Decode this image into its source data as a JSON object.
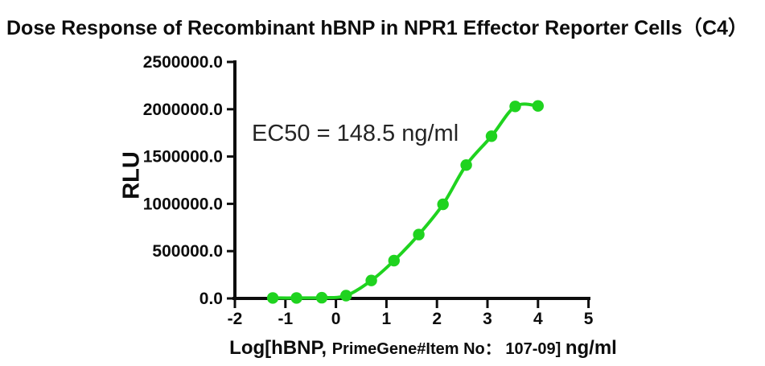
{
  "page": {
    "background": "#ffffff"
  },
  "chart_data": {
    "type": "line",
    "title": "Dose Response of Recombinant hBNP in NPR1 Effector Reporter Cells（C4）",
    "ylabel": "RLU",
    "xlabel_parts": [
      "Log[hBNP, ",
      "PrimeGene#Item No： 107-09] ",
      "ng/ml"
    ],
    "xlabel_full": "Log[hBNP, PrimeGene#Item No： 107-09] ng/ml",
    "annotation": "EC50 = 148.5 ng/ml",
    "ec50_ng_ml": 148.5,
    "xlim": [
      -2,
      5
    ],
    "ylim": [
      0,
      2500000
    ],
    "x_ticks": [
      -2,
      -1,
      0,
      1,
      2,
      3,
      4,
      5
    ],
    "x_tick_labels": [
      "-2",
      "-1",
      "0",
      "1",
      "2",
      "3",
      "4",
      "5"
    ],
    "y_ticks": [
      0,
      500000,
      1000000,
      1500000,
      2000000,
      2500000
    ],
    "y_tick_labels": [
      "0.0",
      "500000.0",
      "1000000.0",
      "1500000.0",
      "2000000.0",
      "2500000.0"
    ],
    "grid": false,
    "legend": "none",
    "series": [
      {
        "name": "Recombinant hBNP",
        "color": "#1fd31f",
        "marker": "circle",
        "fit": "sigmoidal-dose-response",
        "points": [
          [
            -1.25,
            5000
          ],
          [
            -0.78,
            5000
          ],
          [
            -0.28,
            8000
          ],
          [
            0.2,
            30000
          ],
          [
            0.7,
            190000
          ],
          [
            1.15,
            400000
          ],
          [
            1.64,
            675000
          ],
          [
            2.12,
            995000
          ],
          [
            2.58,
            1410000
          ],
          [
            3.08,
            1715000
          ],
          [
            3.55,
            2030000
          ],
          [
            4.0,
            2035000
          ]
        ]
      }
    ]
  },
  "colors": {
    "curve": "#1fd31f",
    "axis": "#0d0d0d",
    "title_text": "#0d0d0d",
    "annotation_text": "#242424"
  }
}
